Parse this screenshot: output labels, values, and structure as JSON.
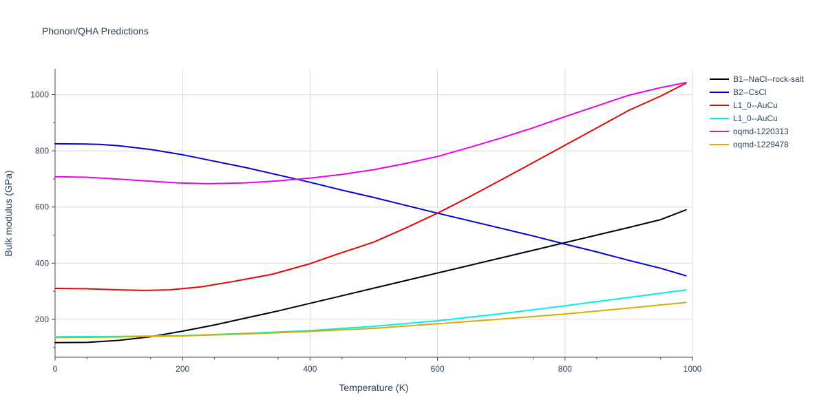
{
  "chart_data": {
    "type": "line",
    "title": "Phonon/QHA Predictions",
    "xlabel": "Temperature (K)",
    "ylabel": "Bulk modulus (GPa)",
    "xlim": [
      0,
      1000
    ],
    "ylim": [
      65,
      1092
    ],
    "x_ticks": [
      0,
      200,
      400,
      600,
      800,
      1000
    ],
    "x_tick_labels": [
      "0",
      "200",
      "400",
      "600",
      "800",
      "1000"
    ],
    "y_ticks": [
      200,
      400,
      600,
      800,
      1000
    ],
    "y_tick_labels": [
      "200",
      "400",
      "600",
      "800",
      "1000"
    ],
    "grid": true,
    "legend_position": "right",
    "series": [
      {
        "name": "B1--NaCl--rock-salt",
        "color": "#000000",
        "x": [
          0,
          50,
          100,
          150,
          200,
          250,
          300,
          350,
          400,
          450,
          500,
          550,
          600,
          650,
          700,
          750,
          800,
          850,
          900,
          950,
          990
        ],
        "y": [
          117,
          118,
          125,
          138,
          158,
          180,
          205,
          230,
          257,
          284,
          311,
          338,
          365,
          392,
          419,
          446,
          473,
          500,
          527,
          555,
          590
        ]
      },
      {
        "name": "B2--CsCl",
        "color": "#0000dd",
        "x": [
          0,
          50,
          70,
          100,
          150,
          200,
          250,
          300,
          350,
          400,
          450,
          500,
          550,
          600,
          650,
          700,
          750,
          800,
          850,
          900,
          950,
          990
        ],
        "y": [
          825,
          824,
          823,
          818,
          805,
          786,
          763,
          740,
          714,
          688,
          660,
          634,
          606,
          578,
          551,
          524,
          497,
          468,
          440,
          410,
          382,
          355
        ]
      },
      {
        "name": "L1_0--AuCu",
        "color": "#ee0000",
        "x": [
          0,
          50,
          100,
          140,
          180,
          230,
          280,
          340,
          400,
          440,
          500,
          550,
          600,
          650,
          700,
          750,
          800,
          850,
          900,
          950,
          990
        ],
        "y": [
          310,
          309,
          305,
          303,
          305,
          316,
          335,
          360,
          398,
          430,
          475,
          525,
          578,
          636,
          697,
          758,
          820,
          882,
          944,
          995,
          1041
        ]
      },
      {
        "name": "L1_0--AuCu",
        "color": "#00eeee",
        "x": [
          0,
          100,
          200,
          300,
          400,
          500,
          600,
          700,
          800,
          900,
          990
        ],
        "y": [
          138,
          139,
          142,
          150,
          160,
          175,
          195,
          220,
          248,
          278,
          305
        ]
      },
      {
        "name": "oqmd-1220313",
        "color": "#ee00ee",
        "x": [
          0,
          50,
          100,
          150,
          190,
          240,
          300,
          350,
          400,
          450,
          500,
          550,
          600,
          650,
          700,
          750,
          800,
          850,
          900,
          950,
          990
        ],
        "y": [
          708,
          706,
          699,
          692,
          686,
          683,
          686,
          693,
          703,
          716,
          733,
          755,
          780,
          812,
          846,
          882,
          922,
          960,
          998,
          1025,
          1043
        ]
      },
      {
        "name": "oqmd-1229478",
        "color": "#ddaa00",
        "x": [
          0,
          100,
          200,
          300,
          400,
          500,
          600,
          700,
          800,
          900,
          990
        ],
        "y": [
          135,
          137,
          141,
          148,
          157,
          168,
          184,
          201,
          219,
          240,
          260
        ]
      }
    ]
  }
}
